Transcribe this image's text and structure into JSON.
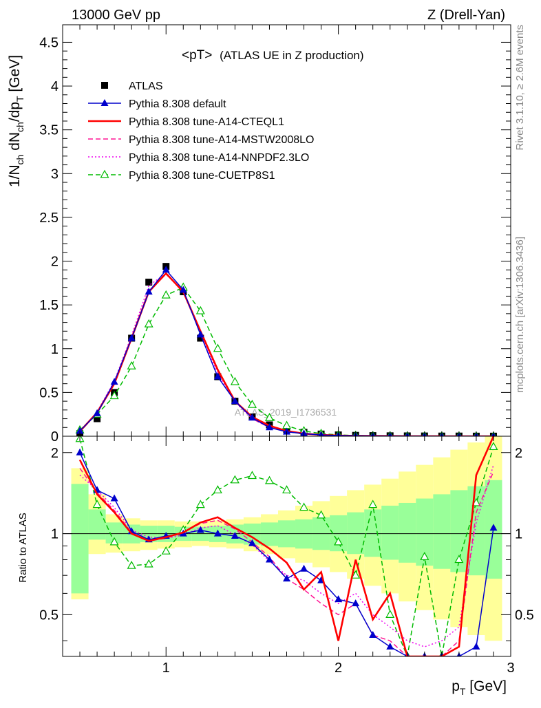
{
  "header": {
    "energy": "13000 GeV pp",
    "process": "Z (Drell-Yan)",
    "title": "<pT>",
    "title_suffix": "(ATLAS UE in Z production)",
    "watermark": "ATLAS_2019_I1736531",
    "side_version": "Rivet 3.1.10, ≥ 2.6M events",
    "side_site": "mcplots.cern.ch [arXiv:1306.3436]"
  },
  "chart_data": [
    {
      "type": "line",
      "panel": "main",
      "ylabel": "1/N_ch dN_ch/dp_T [GeV]",
      "xlim": [
        0.4,
        3.0
      ],
      "ylim": [
        0,
        4.7
      ],
      "yticks": [
        "0",
        "0.5",
        "1",
        "1.5",
        "2",
        "2.5",
        "3",
        "3.5",
        "4",
        "4.5"
      ],
      "x": [
        0.5,
        0.6,
        0.7,
        0.8,
        0.9,
        1.0,
        1.1,
        1.2,
        1.3,
        1.4,
        1.5,
        1.6,
        1.7,
        1.8,
        1.9,
        2.0,
        2.1,
        2.2,
        2.3,
        2.4,
        2.5,
        2.6,
        2.7,
        2.8,
        2.9
      ],
      "legend_position": "top-left",
      "series": [
        {
          "name": "ATLAS",
          "color": "#000000",
          "style": "square-markers",
          "values": [
            0.03,
            0.2,
            0.5,
            1.12,
            1.76,
            1.94,
            1.65,
            1.12,
            0.68,
            0.4,
            0.22,
            0.13,
            0.075,
            0.045,
            0.025,
            0.015,
            0.01,
            0.007,
            0.005,
            0.004,
            0.003,
            0.002,
            0.002,
            0.001,
            0.001
          ]
        },
        {
          "name": "Pythia 8.308 default",
          "color": "#0000cc",
          "style": "solid-triangles",
          "values": [
            0.06,
            0.26,
            0.62,
            1.12,
            1.65,
            1.9,
            1.67,
            1.16,
            0.68,
            0.4,
            0.21,
            0.1,
            0.05,
            0.03,
            0.015,
            0.008,
            0.005,
            0.003,
            0.002,
            0.001,
            0.001,
            0.0,
            0.0,
            0.0,
            0.0
          ]
        },
        {
          "name": "Pythia 8.308 tune-A14-CTEQL1",
          "color": "#ff0000",
          "style": "solid-thick",
          "values": [
            0.055,
            0.27,
            0.6,
            1.12,
            1.65,
            1.86,
            1.65,
            1.2,
            0.76,
            0.4,
            0.22,
            0.12,
            0.06,
            0.03,
            0.015,
            0.008,
            0.005,
            0.003,
            0.002,
            0.001,
            0.001,
            0.0,
            0.0,
            0.0,
            0.0
          ]
        },
        {
          "name": "Pythia 8.308 tune-A14-MSTW2008LO",
          "color": "#ff1493",
          "style": "dashed",
          "values": [
            0.05,
            0.27,
            0.62,
            1.13,
            1.66,
            1.85,
            1.66,
            1.2,
            0.75,
            0.41,
            0.2,
            0.1,
            0.05,
            0.03,
            0.015,
            0.008,
            0.005,
            0.003,
            0.002,
            0.001,
            0.001,
            0.0,
            0.0,
            0.0,
            0.0
          ]
        },
        {
          "name": "Pythia 8.308 tune-A14-NNPDF2.3LO",
          "color": "#ee00ee",
          "style": "dotted",
          "values": [
            0.05,
            0.28,
            0.63,
            1.15,
            1.72,
            1.86,
            1.64,
            1.18,
            0.72,
            0.39,
            0.2,
            0.1,
            0.05,
            0.03,
            0.015,
            0.008,
            0.005,
            0.003,
            0.002,
            0.001,
            0.001,
            0.0,
            0.0,
            0.0,
            0.0
          ]
        },
        {
          "name": "Pythia 8.308 tune-CUETP8S1",
          "color": "#00bb00",
          "style": "dashed-open-triangles",
          "values": [
            0.07,
            0.25,
            0.46,
            0.8,
            1.28,
            1.61,
            1.7,
            1.43,
            1.0,
            0.62,
            0.36,
            0.21,
            0.12,
            0.06,
            0.03,
            0.015,
            0.008,
            0.005,
            0.003,
            0.002,
            0.001,
            0.001,
            0.0,
            0.0,
            0.0
          ]
        }
      ]
    },
    {
      "type": "line",
      "panel": "ratio",
      "ylabel": "Ratio to ATLAS",
      "xlabel": "p_T [GeV]",
      "xlim": [
        0.4,
        3.0
      ],
      "ylim": [
        0.35,
        2.3
      ],
      "xticks": [
        "1",
        "2",
        "3"
      ],
      "yticks": [
        "0.5",
        "1",
        "2"
      ],
      "x": [
        0.5,
        0.6,
        0.7,
        0.8,
        0.9,
        1.0,
        1.1,
        1.2,
        1.3,
        1.4,
        1.5,
        1.6,
        1.7,
        1.8,
        1.9,
        2.0,
        2.1,
        2.2,
        2.3,
        2.4,
        2.5,
        2.6,
        2.7,
        2.8,
        2.9
      ],
      "bands": {
        "green_lo": [
          0.6,
          0.95,
          0.92,
          0.92,
          0.93,
          0.93,
          0.94,
          0.94,
          0.93,
          0.92,
          0.91,
          0.9,
          0.89,
          0.88,
          0.87,
          0.86,
          0.84,
          0.82,
          0.8,
          0.78,
          0.76,
          0.74,
          0.72,
          0.7,
          0.68
        ],
        "green_hi": [
          1.53,
          1.23,
          1.1,
          1.08,
          1.07,
          1.07,
          1.06,
          1.06,
          1.07,
          1.08,
          1.09,
          1.1,
          1.12,
          1.13,
          1.15,
          1.17,
          1.2,
          1.23,
          1.27,
          1.3,
          1.35,
          1.4,
          1.45,
          1.5,
          1.58
        ],
        "yellow_lo": [
          0.57,
          0.84,
          0.85,
          0.86,
          0.87,
          0.88,
          0.89,
          0.9,
          0.89,
          0.88,
          0.86,
          0.84,
          0.81,
          0.78,
          0.75,
          0.72,
          0.68,
          0.64,
          0.6,
          0.56,
          0.52,
          0.48,
          0.45,
          0.42,
          0.4
        ],
        "yellow_hi": [
          1.75,
          1.4,
          1.18,
          1.14,
          1.12,
          1.12,
          1.11,
          1.11,
          1.12,
          1.13,
          1.15,
          1.18,
          1.22,
          1.27,
          1.32,
          1.38,
          1.45,
          1.52,
          1.6,
          1.7,
          1.8,
          1.92,
          2.05,
          2.18,
          2.3
        ]
      },
      "series": [
        {
          "name": "Pythia 8.308 default",
          "color": "#0000cc",
          "style": "solid-triangles",
          "values": [
            2.0,
            1.45,
            1.35,
            1.02,
            0.95,
            0.98,
            1.0,
            1.03,
            1.0,
            0.98,
            0.92,
            0.8,
            0.68,
            0.74,
            0.67,
            0.57,
            0.55,
            0.42,
            0.38,
            0.35,
            0.35,
            0.35,
            0.35,
            0.38,
            1.05
          ]
        },
        {
          "name": "Pythia 8.308 tune-A14-CTEQL1",
          "color": "#ff0000",
          "style": "solid-thick",
          "values": [
            1.88,
            1.4,
            1.2,
            1.0,
            0.94,
            0.97,
            1.01,
            1.1,
            1.15,
            1.05,
            0.97,
            0.88,
            0.78,
            0.62,
            0.72,
            0.4,
            0.8,
            0.48,
            0.6,
            0.35,
            0.35,
            0.35,
            0.38,
            1.65,
            2.3
          ]
        },
        {
          "name": "Pythia 8.308 tune-A14-MSTW2008LO",
          "color": "#ff1493",
          "style": "dashed",
          "values": [
            1.75,
            1.42,
            1.22,
            1.01,
            0.94,
            0.96,
            1.01,
            1.09,
            1.12,
            1.04,
            0.93,
            0.82,
            0.68,
            0.62,
            0.55,
            0.5,
            0.55,
            0.42,
            0.4,
            0.35,
            0.35,
            0.35,
            0.4,
            1.2,
            1.7
          ]
        },
        {
          "name": "Pythia 8.308 tune-A14-NNPDF2.3LO",
          "color": "#ee00ee",
          "style": "dotted",
          "values": [
            1.65,
            1.45,
            1.25,
            1.03,
            0.97,
            0.96,
            0.99,
            1.05,
            1.07,
            0.99,
            0.91,
            0.79,
            0.7,
            0.67,
            0.6,
            0.55,
            0.6,
            0.5,
            0.45,
            0.4,
            0.38,
            0.4,
            0.45,
            1.1,
            1.8
          ]
        },
        {
          "name": "Pythia 8.308 tune-CUETP8S1",
          "color": "#00bb00",
          "style": "dashed-open-triangles",
          "values": [
            2.25,
            1.28,
            0.93,
            0.76,
            0.77,
            0.86,
            1.03,
            1.28,
            1.45,
            1.58,
            1.64,
            1.57,
            1.45,
            1.25,
            1.17,
            0.93,
            0.7,
            1.28,
            0.5,
            0.35,
            0.82,
            0.35,
            0.8,
            1.3,
            2.1
          ]
        }
      ]
    }
  ]
}
